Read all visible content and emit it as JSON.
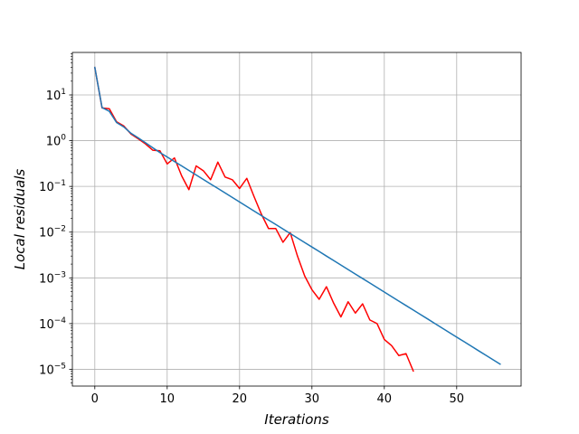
{
  "chart_data": {
    "type": "line",
    "title": "",
    "xlabel": "Iterations",
    "ylabel": "Local   residuals",
    "yscale": "log",
    "grid": true,
    "xlim": [
      -3.1,
      58.9
    ],
    "ylim": [
      4.3e-06,
      85
    ],
    "x_ticks": [
      0,
      10,
      20,
      30,
      40,
      50
    ],
    "y_ticks": [
      {
        "value": 1e-05,
        "base": "10",
        "exp": "−5"
      },
      {
        "value": 0.0001,
        "base": "10",
        "exp": "−4"
      },
      {
        "value": 0.001,
        "base": "10",
        "exp": "−3"
      },
      {
        "value": 0.01,
        "base": "10",
        "exp": "−2"
      },
      {
        "value": 0.1,
        "base": "10",
        "exp": "−1"
      },
      {
        "value": 1,
        "base": "10",
        "exp": "0"
      },
      {
        "value": 10,
        "base": "10",
        "exp": "1"
      }
    ],
    "series": [
      {
        "color": "#ff0000",
        "x": [
          0,
          1,
          2,
          3,
          4,
          5,
          6,
          7,
          8,
          9,
          10,
          11,
          12,
          13,
          14,
          15,
          16,
          17,
          18,
          19,
          20,
          21,
          22,
          23,
          24,
          25,
          26,
          27,
          28,
          29,
          30,
          31,
          32,
          33,
          34,
          35,
          36,
          37,
          38,
          39,
          40,
          41,
          42,
          43,
          44
        ],
        "y": [
          40,
          5.2,
          5.0,
          2.6,
          2.1,
          1.4,
          1.1,
          0.85,
          0.62,
          0.6,
          0.31,
          0.42,
          0.17,
          0.085,
          0.28,
          0.22,
          0.14,
          0.34,
          0.16,
          0.14,
          0.09,
          0.15,
          0.06,
          0.025,
          0.012,
          0.012,
          0.006,
          0.0098,
          0.003,
          0.0011,
          0.00055,
          0.00034,
          0.00064,
          0.00028,
          0.00014,
          0.0003,
          0.00017,
          0.00027,
          0.00012,
          0.0001,
          4.5e-05,
          3.3e-05,
          2e-05,
          2.2e-05,
          9.2e-06
        ]
      },
      {
        "color": "#1f77b4",
        "x": [
          0,
          1,
          2,
          3,
          4,
          5,
          6,
          7,
          8,
          9,
          10,
          11,
          12,
          13,
          14,
          15,
          16,
          17,
          18,
          19,
          20,
          21,
          22,
          23,
          24,
          25,
          26,
          27,
          28,
          29,
          30,
          31,
          32,
          33,
          34,
          35,
          36,
          37,
          38,
          39,
          40,
          41,
          42,
          43,
          44,
          45,
          46,
          47,
          48,
          49,
          50,
          51,
          52,
          53,
          54,
          55,
          56
        ],
        "y": [
          40,
          5.3,
          4.4,
          2.5,
          2.0,
          1.45,
          1.15,
          0.9,
          0.7,
          0.55,
          0.44,
          0.35,
          0.28,
          0.223,
          0.178,
          0.142,
          0.113,
          0.0902,
          0.0719,
          0.0573,
          0.0457,
          0.0364,
          0.029,
          0.0231,
          0.0184,
          0.0147,
          0.0117,
          0.00934,
          0.00744,
          0.00593,
          0.00473,
          0.00377,
          0.003,
          0.00239,
          0.00191,
          0.00152,
          0.00121,
          0.000967,
          0.000771,
          0.000614,
          0.00049,
          0.00039,
          0.000311,
          0.000248,
          0.000198,
          0.000158,
          0.000126,
          0.0001,
          7.97e-05,
          6.35e-05,
          5.06e-05,
          4.04e-05,
          3.22e-05,
          2.56e-05,
          2.04e-05,
          1.63e-05,
          1.3e-05
        ]
      }
    ]
  }
}
